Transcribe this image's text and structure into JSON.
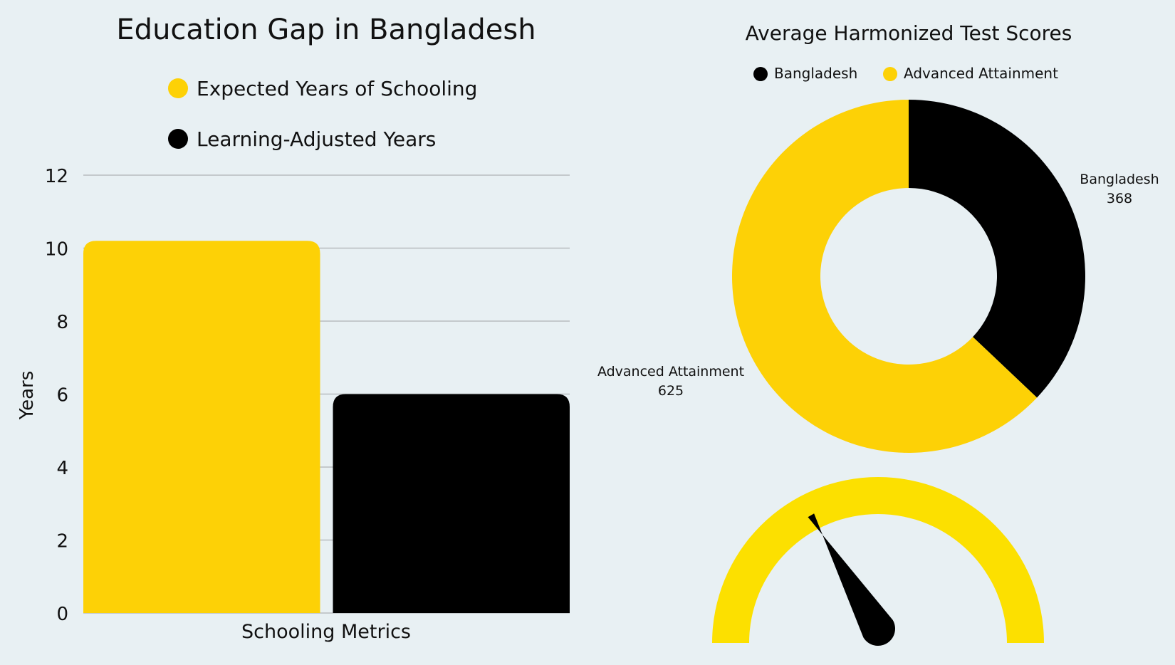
{
  "colors": {
    "background": "#e8f0f3",
    "yellow": "#fdd106",
    "black": "#000000",
    "gauge": "#fce000",
    "grid": "#b7bcbf"
  },
  "chart_data": [
    {
      "type": "bar",
      "title": "Education Gap in Bangladesh",
      "xlabel": "Schooling Metrics",
      "ylabel": "Years",
      "ylim": [
        0,
        12
      ],
      "yticks": [
        0,
        2,
        4,
        6,
        8,
        10,
        12
      ],
      "grid": true,
      "legend_placement": "top",
      "categories": [
        "Schooling Metrics"
      ],
      "series": [
        {
          "name": "Expected Years of Schooling",
          "color": "#fdd106",
          "values": [
            10.2
          ]
        },
        {
          "name": "Learning-Adjusted Years",
          "color": "#000000",
          "values": [
            6.0
          ]
        }
      ]
    },
    {
      "type": "pie",
      "subtype": "donut",
      "title": "Average Harmonized Test Scores",
      "legend_placement": "top",
      "slices": [
        {
          "label": "Bangladesh",
          "value": 368,
          "color": "#000000"
        },
        {
          "label": "Advanced Attainment",
          "value": 625,
          "color": "#fdd106"
        }
      ]
    },
    {
      "type": "gauge",
      "range": [
        0,
        1
      ],
      "value": 0.33,
      "color": "#fce000",
      "needle_color": "#000000"
    }
  ]
}
